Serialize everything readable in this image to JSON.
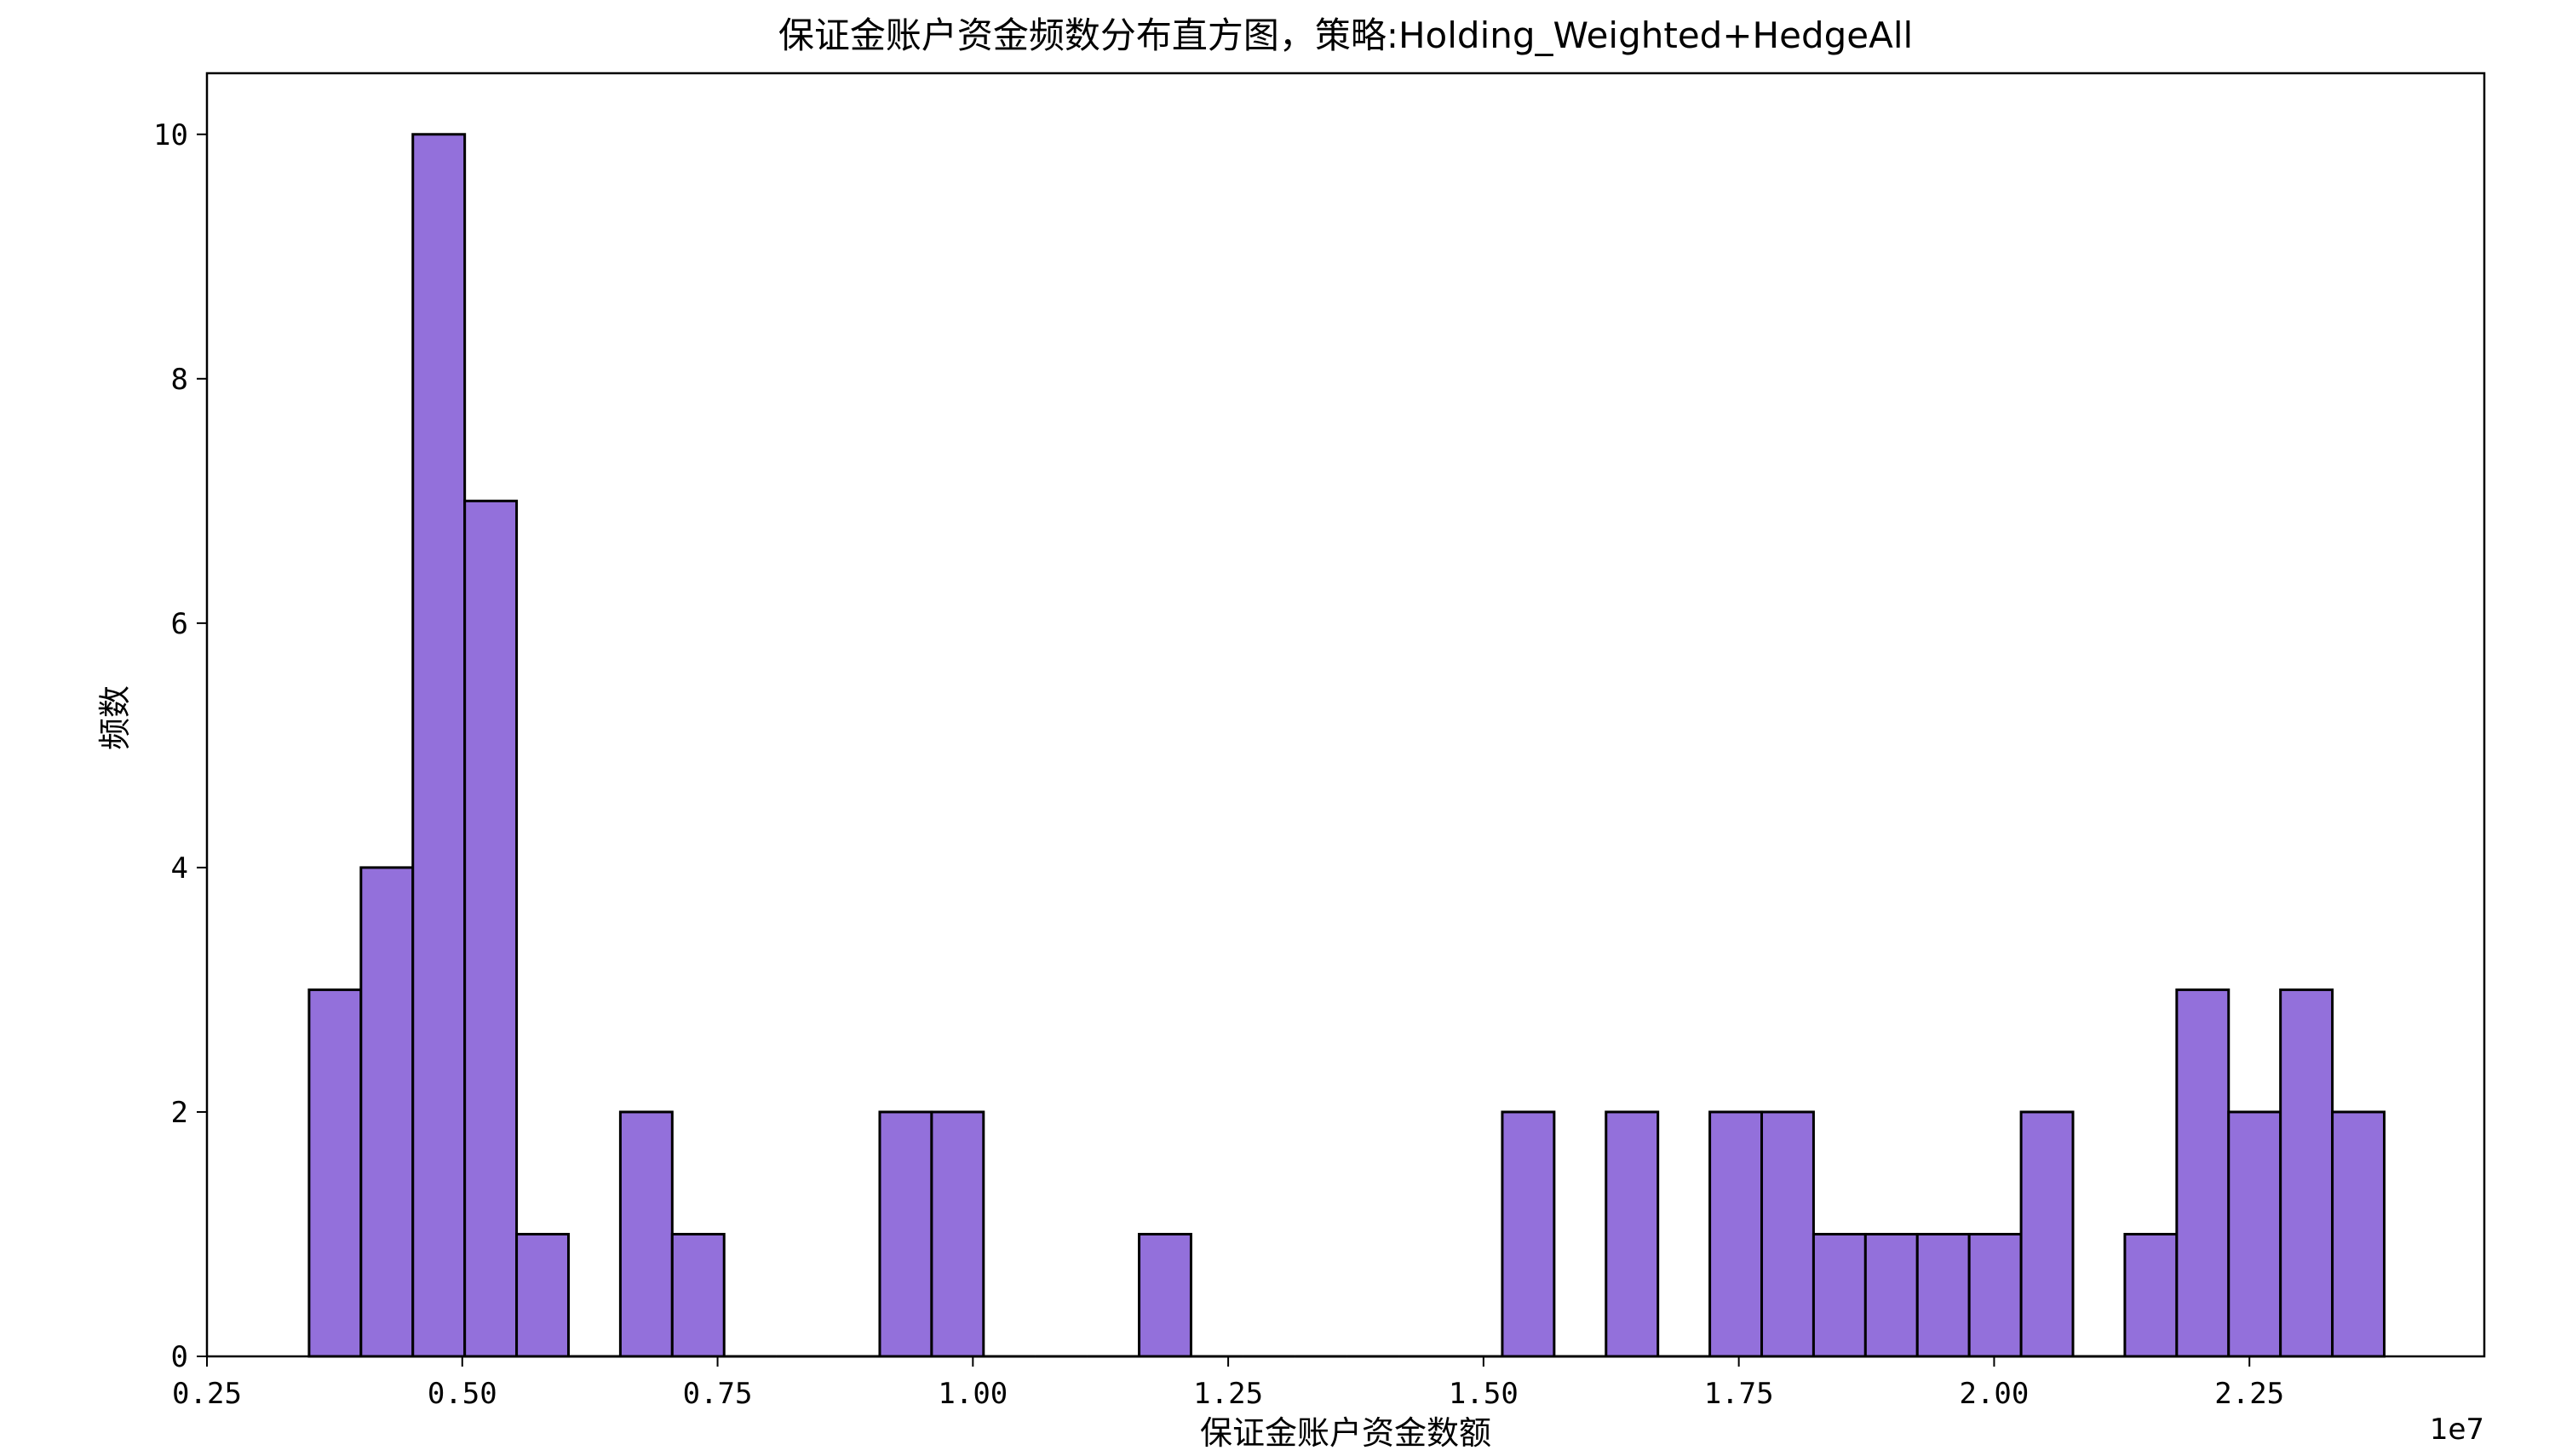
{
  "chart_data": {
    "type": "bar",
    "title": "保证金账户资金频数分布直方图，策略:Holding_Weighted+HedgeAll",
    "xlabel": "保证金账户资金数额",
    "ylabel": "频数",
    "x_offset_label": "1e7",
    "xlim": [
      0.25,
      2.48
    ],
    "ylim": [
      0,
      10.5
    ],
    "x_ticks": [
      0.25,
      0.5,
      0.75,
      1.0,
      1.25,
      1.5,
      1.75,
      2.0,
      2.25
    ],
    "x_tick_labels": [
      "0.25",
      "0.50",
      "0.75",
      "1.00",
      "1.25",
      "1.50",
      "1.75",
      "2.00",
      "2.25"
    ],
    "y_ticks": [
      0,
      2,
      4,
      6,
      8,
      10
    ],
    "y_tick_labels": [
      "0",
      "2",
      "4",
      "6",
      "8",
      "10"
    ],
    "bin_start": 0.35,
    "bin_width": 0.0508,
    "values": [
      3,
      4,
      10,
      7,
      1,
      0,
      2,
      1,
      0,
      0,
      0,
      2,
      2,
      0,
      0,
      0,
      1,
      0,
      0,
      0,
      0,
      0,
      0,
      2,
      0,
      2,
      0,
      2,
      2,
      1,
      1,
      1,
      1,
      2,
      0,
      1,
      3,
      2,
      3,
      2
    ],
    "bar_color": "#9370DB",
    "edge_color": "#000000",
    "grid": false,
    "legend": "none"
  }
}
